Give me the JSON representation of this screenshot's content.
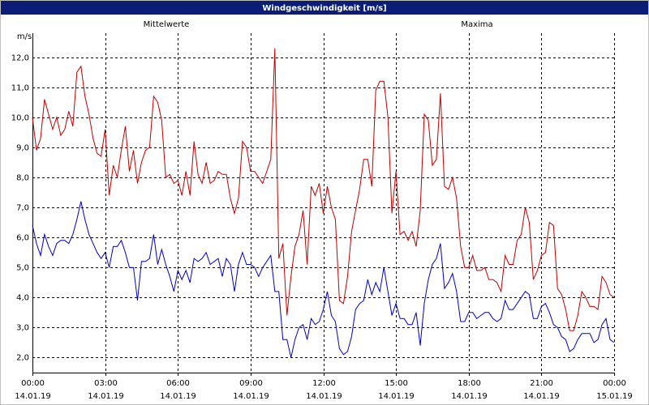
{
  "chart_data": {
    "type": "line",
    "title": "Windgeschwindigkeit [m/s]",
    "y_unit": "m/s",
    "grid": true,
    "x": [
      0,
      10,
      20,
      30,
      40,
      50,
      60,
      70,
      80,
      90,
      100,
      110,
      120,
      130,
      140,
      150,
      160,
      170,
      180,
      190,
      200,
      210,
      220,
      230,
      240,
      250,
      260,
      270,
      280,
      290,
      300,
      310,
      320,
      330,
      340,
      350,
      360,
      370,
      380,
      390,
      400,
      410,
      420,
      430,
      440,
      450,
      460,
      470,
      480,
      490,
      500,
      510,
      520,
      530,
      540,
      550,
      560,
      570,
      580,
      590,
      600,
      610,
      620,
      630,
      640,
      650,
      660,
      670,
      680,
      690,
      700,
      710,
      720,
      730,
      740,
      750,
      760,
      770,
      780,
      790,
      800,
      810,
      820,
      830,
      840,
      850,
      860,
      870,
      880,
      890,
      900,
      910,
      920,
      930,
      940,
      950,
      960,
      970,
      980,
      990,
      1000,
      1010,
      1020,
      1030,
      1040,
      1050,
      1060,
      1070,
      1080,
      1090,
      1100,
      1110,
      1120,
      1130,
      1140,
      1150,
      1160,
      1170,
      1180,
      1190,
      1200,
      1210,
      1220,
      1230,
      1240,
      1250,
      1260,
      1270,
      1280,
      1290,
      1300,
      1310,
      1320,
      1330,
      1340,
      1350,
      1360,
      1370,
      1380,
      1390,
      1400,
      1410,
      1420,
      1430,
      1440
    ],
    "xlim": [
      0,
      1440
    ],
    "xticks": [
      {
        "value": 0,
        "label": [
          "00:00",
          "14.01.19"
        ]
      },
      {
        "value": 180,
        "label": [
          "03:00",
          "14.01.19"
        ]
      },
      {
        "value": 360,
        "label": [
          "06:00",
          "14.01.19"
        ]
      },
      {
        "value": 540,
        "label": [
          "09:00",
          "14.01.19"
        ]
      },
      {
        "value": 720,
        "label": [
          "12:00",
          "14.01.19"
        ]
      },
      {
        "value": 900,
        "label": [
          "15:00",
          "14.01.19"
        ]
      },
      {
        "value": 1080,
        "label": [
          "18:00",
          "14.01.19"
        ]
      },
      {
        "value": 1260,
        "label": [
          "21:00",
          "14.01.19"
        ]
      },
      {
        "value": 1440,
        "label": [
          "00:00",
          "15.01.19"
        ]
      }
    ],
    "ylim": [
      1.5,
      12.8
    ],
    "yticks": [
      {
        "value": 2,
        "label": "2,0"
      },
      {
        "value": 3,
        "label": "3,0"
      },
      {
        "value": 4,
        "label": "4,0"
      },
      {
        "value": 5,
        "label": "5,0"
      },
      {
        "value": 6,
        "label": "6,0"
      },
      {
        "value": 7,
        "label": "7,0"
      },
      {
        "value": 8,
        "label": "8,0"
      },
      {
        "value": 9,
        "label": "9,0"
      },
      {
        "value": 10,
        "label": "10,0"
      },
      {
        "value": 11,
        "label": "11,0"
      },
      {
        "value": 12,
        "label": "12,0"
      }
    ],
    "series": [
      {
        "name": "Mittelwerte",
        "color": "#0000c0",
        "values": [
          6.4,
          5.8,
          5.4,
          6.1,
          5.7,
          5.4,
          5.8,
          5.9,
          5.9,
          5.8,
          6.1,
          6.6,
          7.2,
          6.6,
          6.1,
          5.8,
          5.5,
          5.3,
          5.5,
          5.0,
          5.7,
          5.7,
          5.9,
          5.5,
          5.0,
          5.0,
          3.9,
          5.2,
          5.2,
          5.3,
          6.1,
          5.1,
          5.6,
          5.1,
          4.7,
          4.2,
          4.9,
          4.6,
          4.9,
          4.5,
          5.3,
          5.2,
          5.3,
          5.5,
          5.1,
          5.2,
          5.3,
          4.7,
          5.3,
          5.1,
          4.2,
          5.1,
          5.5,
          5.1,
          5.1,
          5.0,
          4.7,
          5.0,
          5.2,
          5.4,
          4.2,
          4.2,
          2.6,
          2.6,
          2.0,
          2.6,
          3.0,
          3.1,
          2.6,
          3.3,
          3.1,
          3.2,
          3.6,
          4.2,
          3.4,
          3.2,
          2.3,
          2.1,
          2.2,
          2.7,
          3.6,
          3.8,
          3.9,
          4.6,
          4.1,
          4.5,
          4.2,
          5.0,
          4.2,
          3.4,
          3.8,
          3.3,
          3.3,
          3.1,
          3.1,
          3.5,
          2.4,
          3.8,
          4.6,
          5.1,
          5.3,
          5.8,
          4.3,
          4.5,
          4.8,
          4.2,
          3.2,
          3.2,
          3.5,
          3.5,
          3.3,
          3.4,
          3.5,
          3.5,
          3.3,
          3.2,
          3.3,
          3.9,
          3.6,
          3.6,
          3.8,
          4.0,
          4.2,
          4.1,
          3.3,
          3.3,
          3.7,
          3.8,
          3.5,
          3.1,
          3.0,
          2.7,
          2.6,
          2.2,
          2.3,
          2.6,
          2.8,
          2.8,
          2.8,
          2.5,
          2.6,
          3.1,
          3.3,
          2.6,
          2.5
        ]
      },
      {
        "name": "Maxima",
        "color": "#c00000",
        "values": [
          10.0,
          8.9,
          9.3,
          10.6,
          10.1,
          9.6,
          10.0,
          9.4,
          9.6,
          10.2,
          9.7,
          11.5,
          11.7,
          10.7,
          10.1,
          9.3,
          8.8,
          8.7,
          9.6,
          7.4,
          8.4,
          8.0,
          8.9,
          9.7,
          8.2,
          8.9,
          7.8,
          8.5,
          8.9,
          9.0,
          10.7,
          10.5,
          9.9,
          8.0,
          8.1,
          7.8,
          7.9,
          7.4,
          8.2,
          7.4,
          9.2,
          8.1,
          7.8,
          8.5,
          7.8,
          7.9,
          8.2,
          8.1,
          8.1,
          7.3,
          6.8,
          7.3,
          9.2,
          9.0,
          8.2,
          8.2,
          8.0,
          7.8,
          8.2,
          8.6,
          12.3,
          5.3,
          5.8,
          3.4,
          4.7,
          5.7,
          6.1,
          6.9,
          5.1,
          7.7,
          7.4,
          7.8,
          6.8,
          7.7,
          7.0,
          6.6,
          3.9,
          3.8,
          4.7,
          6.2,
          6.9,
          7.6,
          8.6,
          8.6,
          7.7,
          10.9,
          11.2,
          11.2,
          10.0,
          6.8,
          8.2,
          6.1,
          6.2,
          5.9,
          6.2,
          5.7,
          6.9,
          10.1,
          9.9,
          8.4,
          8.6,
          10.8,
          7.7,
          7.6,
          8.0,
          7.3,
          5.7,
          5.0,
          5.0,
          5.4,
          4.9,
          4.9,
          5.0,
          4.6,
          4.6,
          4.5,
          4.2,
          5.4,
          5.1,
          5.1,
          5.9,
          6.1,
          7.0,
          6.5,
          4.6,
          4.9,
          5.4,
          5.5,
          6.5,
          6.4,
          4.3,
          4.1,
          3.6,
          2.9,
          2.9,
          3.4,
          4.2,
          4.0,
          3.7,
          3.7,
          3.6,
          4.7,
          4.5,
          4.1,
          4.0
        ]
      }
    ]
  }
}
